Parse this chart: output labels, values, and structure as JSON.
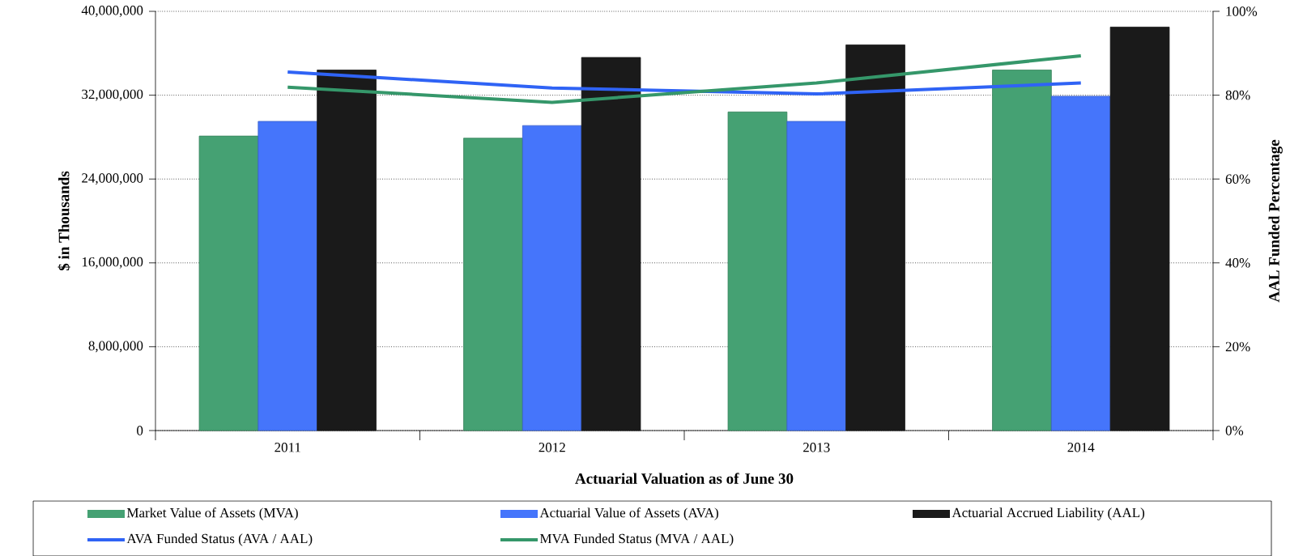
{
  "chart_data": {
    "type": "bar",
    "xlabel": "Actuarial Valuation as of June 30",
    "ylabel": "$ in Thousands",
    "y2label": "AAL Funded Percentage",
    "categories": [
      "2011",
      "2012",
      "2013",
      "2014"
    ],
    "series": [
      {
        "name": "Market Value of Assets (MVA)",
        "color": "#45a173",
        "values": [
          28100000,
          27900000,
          30400000,
          34400000
        ]
      },
      {
        "name": "Actuarial Value of Assets (AVA)",
        "color": "#4575fb",
        "values": [
          29500000,
          29100000,
          29500000,
          31900000
        ]
      },
      {
        "name": "Actuarial Accrued Liability (AAL)",
        "color": "#1a1a1a",
        "values": [
          34400000,
          35600000,
          36800000,
          38500000
        ]
      },
      {
        "name": "AVA Funded Status (AVA / AAL)",
        "type": "line",
        "axis": "y2",
        "color": "#2f63f5",
        "values": [
          85.5,
          81.7,
          80.3,
          82.9
        ]
      },
      {
        "name": "MVA Funded Status (MVA / AAL)",
        "type": "line",
        "axis": "y2",
        "color": "#35976a",
        "values": [
          81.9,
          78.3,
          82.9,
          89.4
        ]
      }
    ],
    "ylim": [
      0,
      40000000
    ],
    "yticks": [
      0,
      {
        "value": 8000000,
        "label": "8,000,000"
      },
      {
        "value": 16000000,
        "label": "16,000,000"
      },
      {
        "value": 24000000,
        "label": "24,000,000"
      },
      {
        "value": 32000000,
        "label": "32,000,000"
      },
      {
        "value": 40000000,
        "label": "40,000,000"
      }
    ],
    "y2lim": [
      0,
      100
    ],
    "y2ticks": [
      {
        "value": 0,
        "label": "0%"
      },
      {
        "value": 20,
        "label": "20%"
      },
      {
        "value": 40,
        "label": "40%"
      },
      {
        "value": 60,
        "label": "60%"
      },
      {
        "value": 80,
        "label": "80%"
      },
      {
        "value": 100,
        "label": "100%"
      }
    ],
    "grid": "y",
    "legend": "bottom"
  }
}
